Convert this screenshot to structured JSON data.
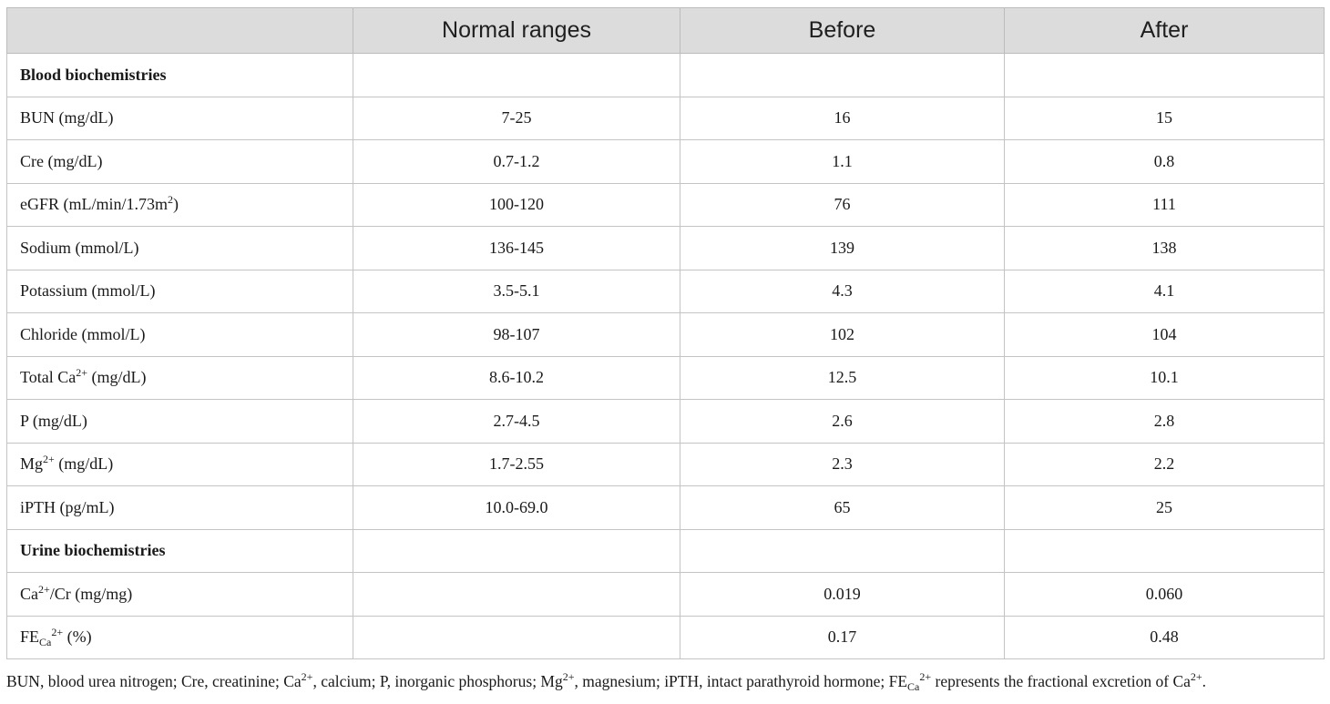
{
  "header": {
    "col_normal": "Normal ranges",
    "col_before": "Before",
    "col_after": "After"
  },
  "sections": {
    "blood": "Blood biochemistries",
    "urine": "Urine biochemistries"
  },
  "rows": {
    "bun": {
      "label": "BUN (mg/dL)",
      "normal": "7-25",
      "before": "16",
      "after": "15"
    },
    "cre": {
      "label": "Cre (mg/dL)",
      "normal": "0.7-1.2",
      "before": "1.1",
      "after": "0.8"
    },
    "egfr": {
      "label_a": "eGFR (mL/min/1.73m",
      "label_sup": "2",
      "label_b": ")",
      "normal": "100-120",
      "before": "76",
      "after": "111"
    },
    "sodium": {
      "label": "Sodium (mmol/L)",
      "normal": "136-145",
      "before": "139",
      "after": "138"
    },
    "potassium": {
      "label": "Potassium (mmol/L)",
      "normal": "3.5-5.1",
      "before": "4.3",
      "after": "4.1"
    },
    "chloride": {
      "label": "Chloride (mmol/L)",
      "normal": "98-107",
      "before": "102",
      "after": "104"
    },
    "total_ca": {
      "label_a": "Total Ca",
      "label_sup": "2+",
      "label_b": " (mg/dL)",
      "normal": "8.6-10.2",
      "before": "12.5",
      "after": "10.1"
    },
    "p": {
      "label": "P (mg/dL)",
      "normal": "2.7-4.5",
      "before": "2.6",
      "after": "2.8"
    },
    "mg": {
      "label_a": "Mg",
      "label_sup": "2+",
      "label_b": " (mg/dL)",
      "normal": "1.7-2.55",
      "before": "2.3",
      "after": "2.2"
    },
    "ipth": {
      "label": "iPTH (pg/mL)",
      "normal": "10.0-69.0",
      "before": "65",
      "after": "25"
    },
    "ca_cr": {
      "label_a": "Ca",
      "label_sup": "2+",
      "label_b": "/Cr (mg/mg)",
      "normal": "",
      "before": "0.019",
      "after": "0.060"
    },
    "fe_ca": {
      "label_a": "FE",
      "label_sub": "Ca",
      "label_sup": "2+",
      "label_b": " (%)",
      "normal": "",
      "before": "0.17",
      "after": "0.48"
    }
  },
  "footnote": {
    "p1": "BUN, blood urea nitrogen; Cre, creatinine; Ca",
    "s1": "2+",
    "p2": ", calcium; P, inorganic phosphorus; Mg",
    "s2": "2+",
    "p3": ", magnesium; iPTH, intact parathyroid hormone; FE",
    "sub3": "Ca",
    "s3": "2+",
    "p4": " represents the fractional excretion of Ca",
    "s4": "2+",
    "p5": "."
  }
}
